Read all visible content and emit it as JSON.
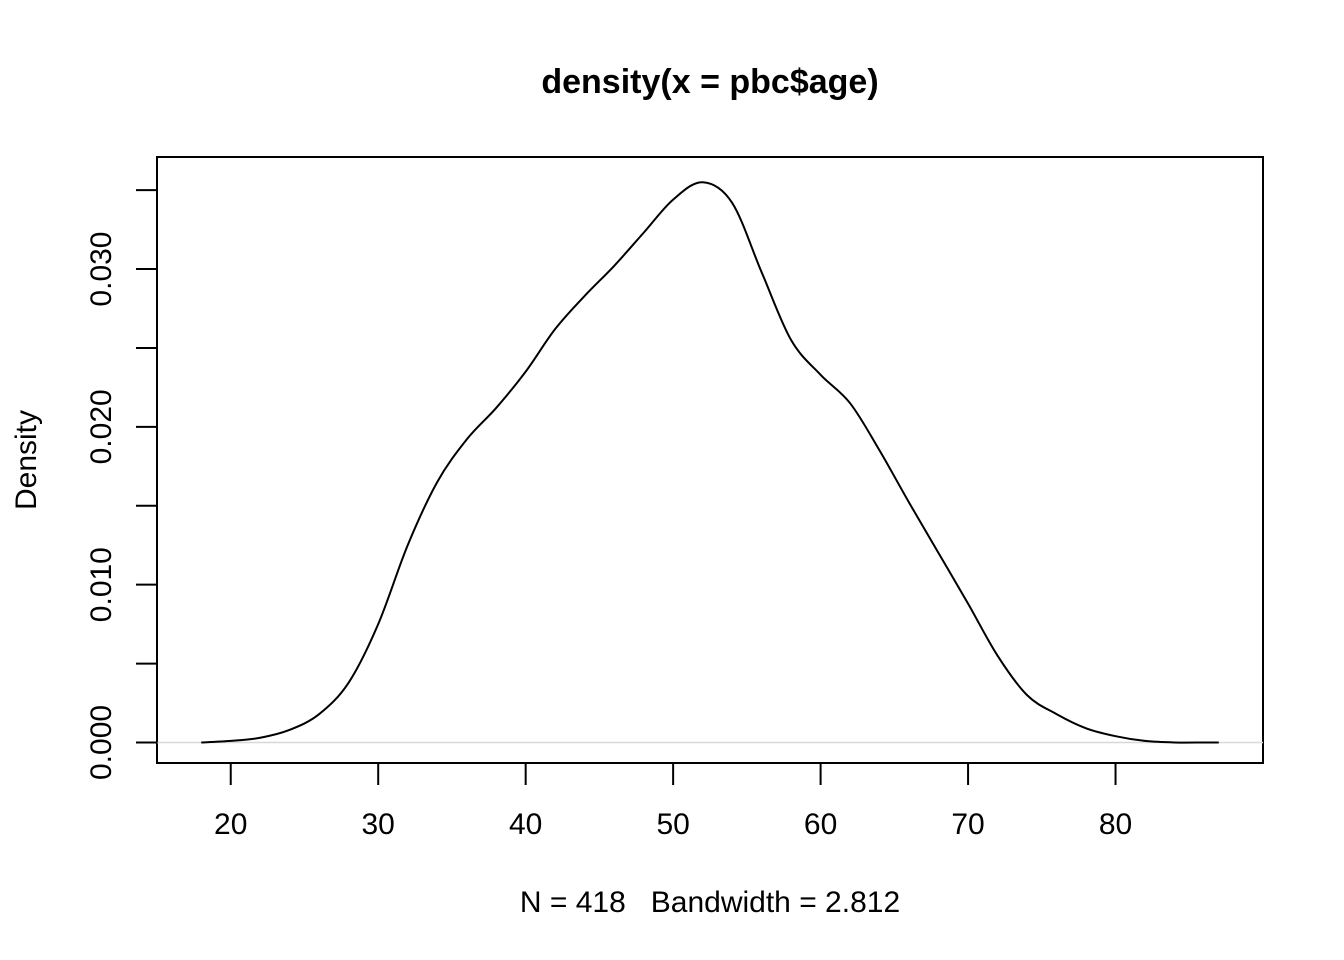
{
  "chart_data": {
    "type": "line",
    "title": "density(x = pbc$age)",
    "xlabel": "N = 418   Bandwidth = 2.812",
    "ylabel": "Density",
    "xlim": [
      15,
      90
    ],
    "ylim": [
      -0.0013,
      0.0371
    ],
    "x_ticks": [
      20,
      30,
      40,
      50,
      60,
      70,
      80
    ],
    "x_tick_labels": [
      "20",
      "30",
      "40",
      "50",
      "60",
      "70",
      "80"
    ],
    "y_ticks": [
      0.0,
      0.005,
      0.01,
      0.015,
      0.02,
      0.025,
      0.03,
      0.035
    ],
    "y_tick_labels": [
      "0.000",
      "",
      "0.010",
      "",
      "0.020",
      "",
      "0.030",
      ""
    ],
    "grid": false,
    "legend": "none",
    "baseline_at_zero": true,
    "series": [
      {
        "x": [
          18.0,
          20.0,
          22.0,
          24.0,
          26.0,
          28.0,
          30.0,
          32.0,
          34.0,
          36.0,
          38.0,
          40.0,
          42.0,
          44.0,
          46.0,
          48.0,
          50.0,
          52.0,
          54.0,
          56.0,
          58.0,
          60.0,
          62.0,
          64.0,
          66.0,
          68.0,
          70.0,
          72.0,
          74.0,
          76.0,
          78.0,
          80.0,
          82.0,
          84.0,
          86.0,
          87.0
        ],
        "y": [
          0.0,
          0.0001,
          0.0003,
          0.0008,
          0.0018,
          0.0038,
          0.0075,
          0.0125,
          0.0165,
          0.0192,
          0.0212,
          0.0235,
          0.0262,
          0.0283,
          0.0302,
          0.0323,
          0.0344,
          0.0355,
          0.0342,
          0.0298,
          0.0255,
          0.0233,
          0.0215,
          0.0185,
          0.0152,
          0.012,
          0.0088,
          0.0055,
          0.003,
          0.0018,
          0.0009,
          0.0004,
          0.0001,
          0.0,
          0.0,
          0.0
        ],
        "color": "#000000"
      }
    ]
  }
}
